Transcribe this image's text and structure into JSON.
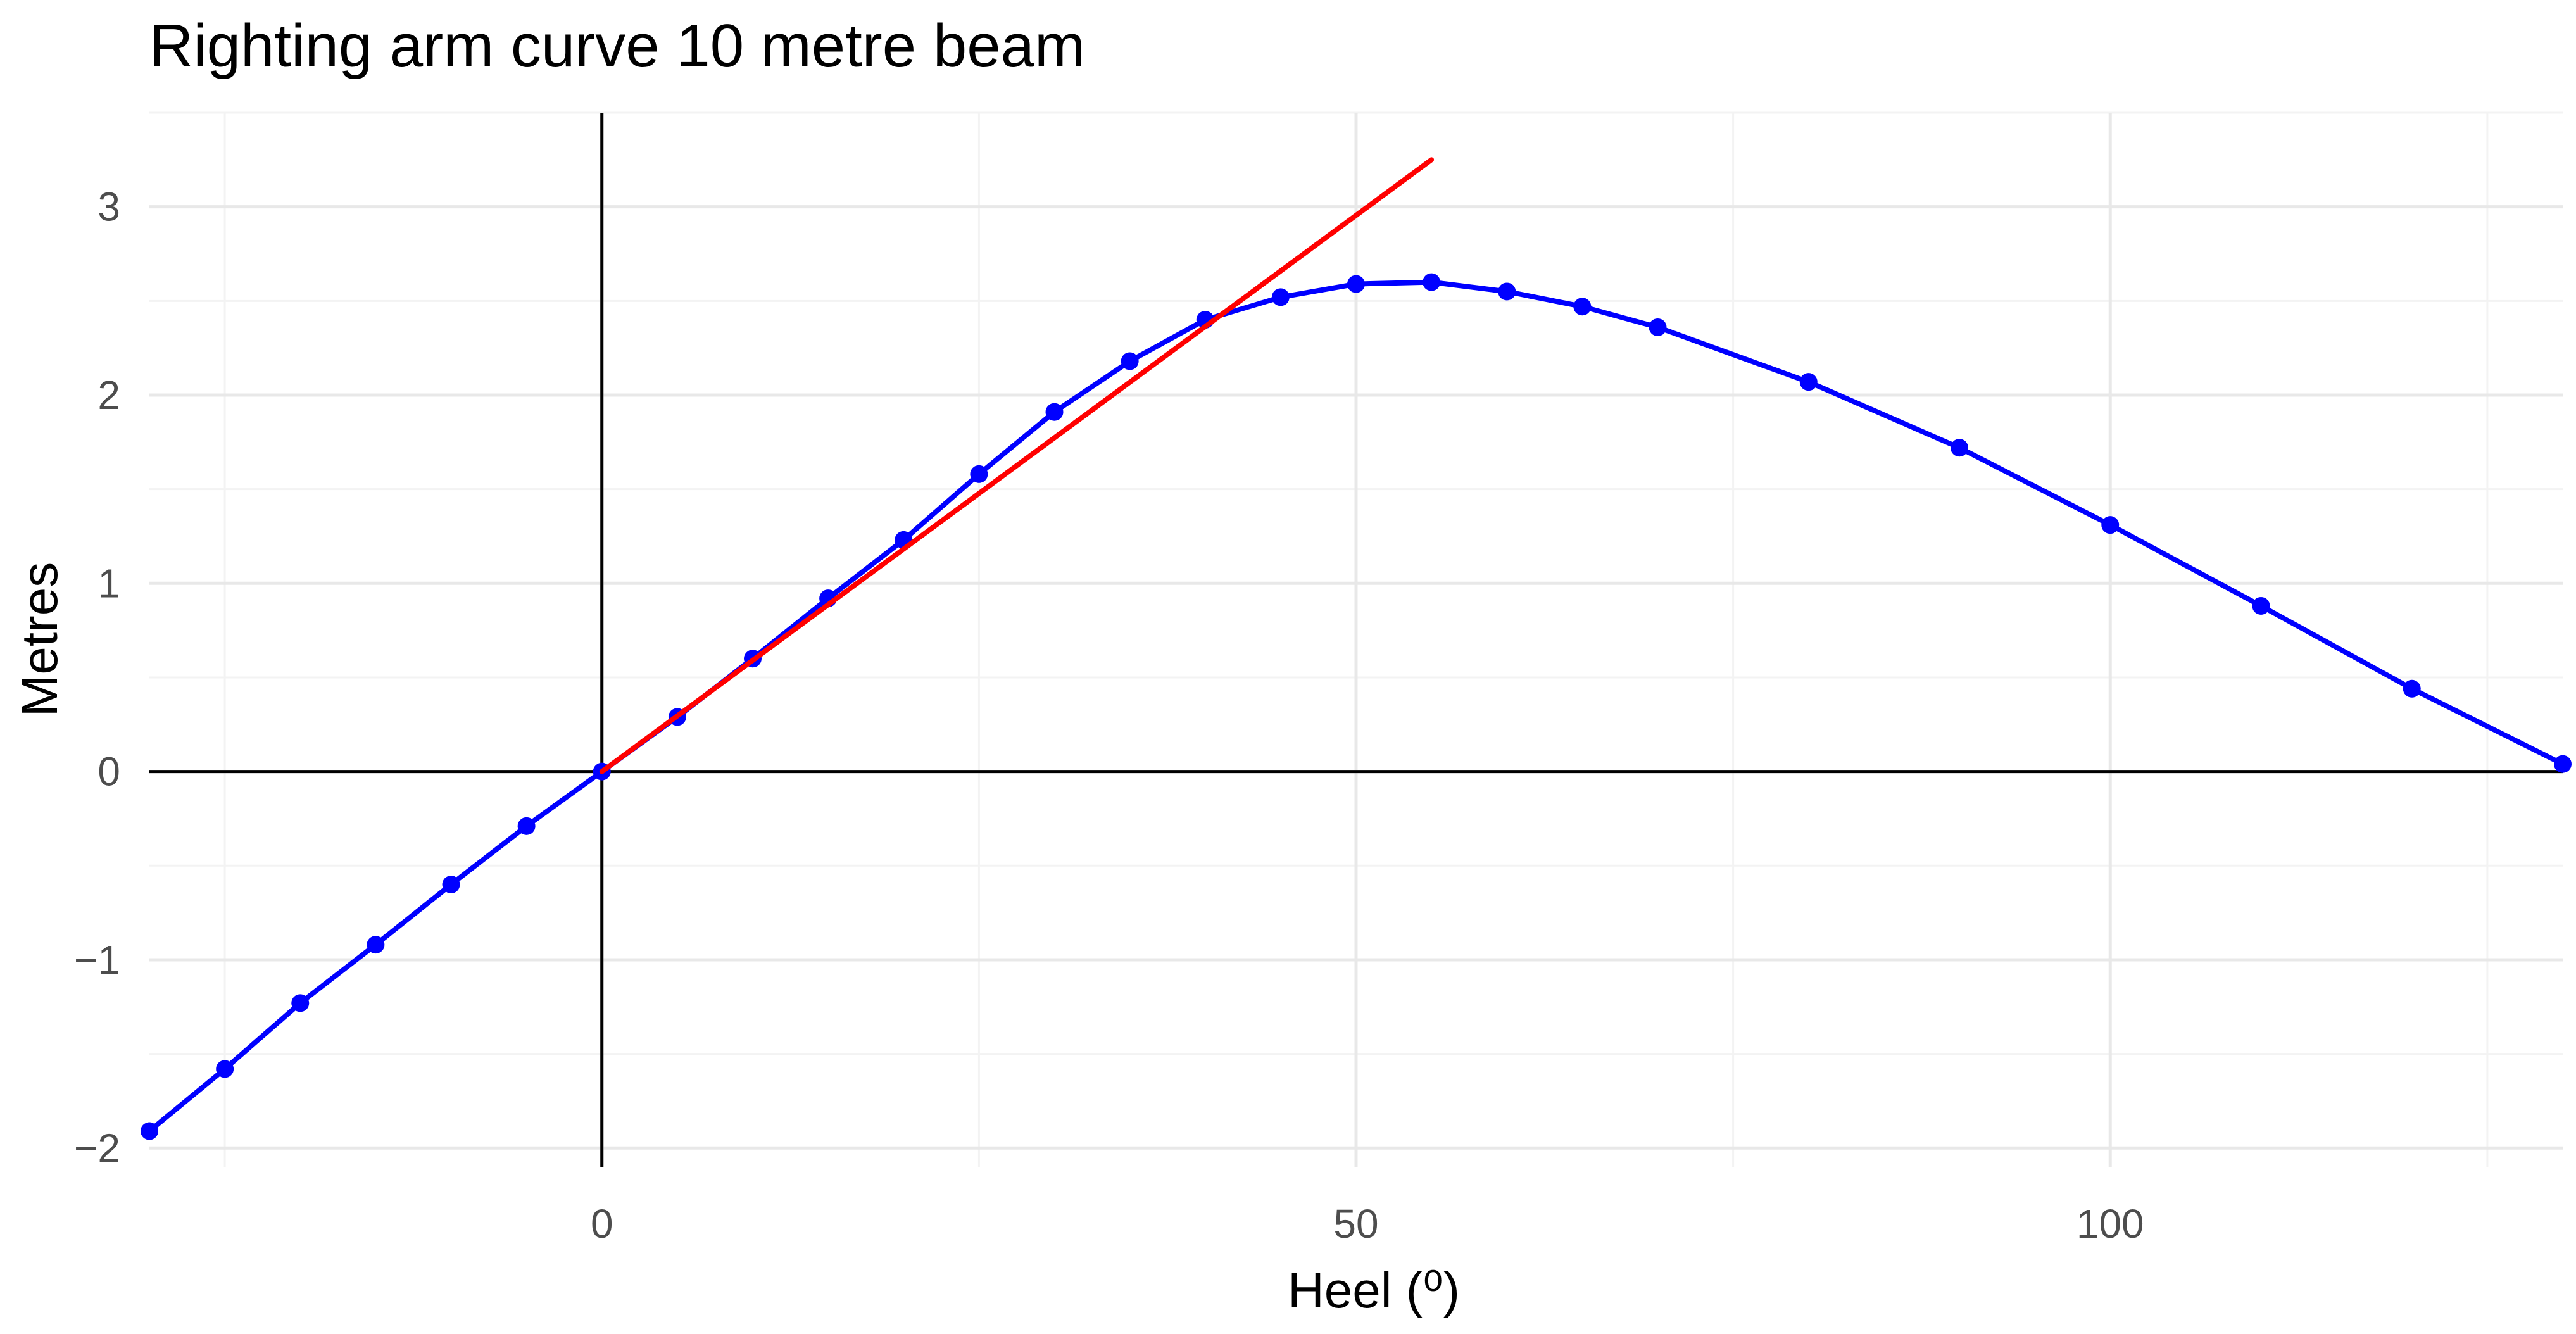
{
  "chart_data": {
    "type": "line",
    "title": "Righting arm curve 10 metre beam",
    "xlabel": "Heel (⁰)",
    "ylabel": "Metres",
    "xlim": [
      -30,
      130
    ],
    "ylim": [
      -2.1,
      3.5
    ],
    "x_ticks": [
      0,
      50,
      100
    ],
    "y_ticks": [
      -2,
      -1,
      0,
      1,
      2,
      3
    ],
    "grid": true,
    "legend": "none",
    "reference_lines": {
      "x": 0,
      "y": 0
    },
    "series": [
      {
        "color": "#0000ff",
        "markers": true,
        "points": [
          {
            "x": -30,
            "y": -1.91
          },
          {
            "x": -25,
            "y": -1.58
          },
          {
            "x": -20,
            "y": -1.23
          },
          {
            "x": -15,
            "y": -0.92
          },
          {
            "x": -10,
            "y": -0.6
          },
          {
            "x": -5,
            "y": -0.29
          },
          {
            "x": 0,
            "y": 0.0
          },
          {
            "x": 5,
            "y": 0.29
          },
          {
            "x": 10,
            "y": 0.6
          },
          {
            "x": 15,
            "y": 0.92
          },
          {
            "x": 20,
            "y": 1.23
          },
          {
            "x": 25,
            "y": 1.58
          },
          {
            "x": 30,
            "y": 1.91
          },
          {
            "x": 35,
            "y": 2.18
          },
          {
            "x": 40,
            "y": 2.4
          },
          {
            "x": 45,
            "y": 2.52
          },
          {
            "x": 50,
            "y": 2.59
          },
          {
            "x": 55,
            "y": 2.6
          },
          {
            "x": 60,
            "y": 2.55
          },
          {
            "x": 65,
            "y": 2.47
          },
          {
            "x": 70,
            "y": 2.36
          },
          {
            "x": 80,
            "y": 2.07
          },
          {
            "x": 90,
            "y": 1.72
          },
          {
            "x": 100,
            "y": 1.31
          },
          {
            "x": 110,
            "y": 0.88
          },
          {
            "x": 120,
            "y": 0.44
          },
          {
            "x": 130,
            "y": 0.04
          }
        ]
      },
      {
        "color": "#ff0000",
        "markers": false,
        "points": [
          {
            "x": 0,
            "y": 0.0
          },
          {
            "x": 55,
            "y": 3.25
          }
        ]
      }
    ]
  }
}
